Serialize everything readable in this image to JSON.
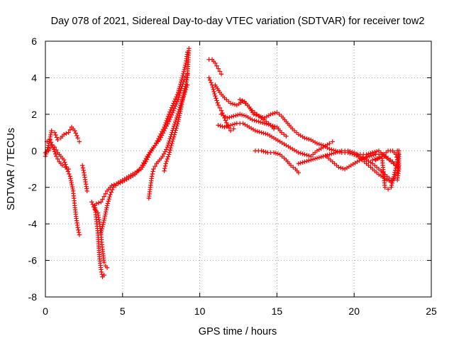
{
  "chart_data": {
    "type": "scatter",
    "title": "Day 078 of 2021, Sidereal Day-to-day VTEC variation (SDTVAR) for receiver tow2",
    "xlabel": "GPS time / hours",
    "ylabel": "SDTVAR / TECUs",
    "xlim": [
      0,
      25
    ],
    "ylim": [
      -8,
      6
    ],
    "xticks": [
      0,
      5,
      10,
      15,
      20,
      25
    ],
    "yticks": [
      -8,
      -6,
      -4,
      -2,
      0,
      2,
      4,
      6
    ],
    "xtick_labels": [
      "0",
      "5",
      "10",
      "15",
      "20",
      "25"
    ],
    "ytick_labels": [
      "-8",
      "-6",
      "-4",
      "-2",
      "0",
      "2",
      "4",
      "6"
    ],
    "grid": true,
    "marker": "plus",
    "color": "#ff0000",
    "series": [
      {
        "values": [
          [
            0.0,
            -0.3
          ],
          [
            0.2,
            0.3
          ],
          [
            0.4,
            1.1
          ],
          [
            0.6,
            1.0
          ],
          [
            0.8,
            0.6
          ],
          [
            1.0,
            0.7
          ],
          [
            1.2,
            0.9
          ],
          [
            1.5,
            1.0
          ],
          [
            1.7,
            1.3
          ],
          [
            1.9,
            1.1
          ],
          [
            2.1,
            0.7
          ],
          [
            2.2,
            0.5
          ]
        ]
      },
      {
        "values": [
          [
            0.0,
            -0.1
          ],
          [
            0.2,
            0.0
          ],
          [
            0.4,
            0.3
          ],
          [
            0.6,
            0.2
          ],
          [
            0.8,
            -0.1
          ],
          [
            1.0,
            -0.3
          ],
          [
            1.2,
            -0.5
          ],
          [
            1.4,
            -1.0
          ],
          [
            1.6,
            -1.4
          ],
          [
            1.8,
            -2.2
          ],
          [
            1.9,
            -3.0
          ],
          [
            2.0,
            -3.7
          ],
          [
            2.1,
            -4.2
          ],
          [
            2.2,
            -4.6
          ]
        ]
      },
      {
        "values": [
          [
            0.1,
            0.5
          ],
          [
            0.3,
            0.6
          ],
          [
            0.5,
            0.2
          ],
          [
            0.7,
            -0.3
          ],
          [
            0.9,
            -0.6
          ],
          [
            1.1,
            -0.8
          ],
          [
            1.3,
            -0.9
          ],
          [
            1.5,
            -1.0
          ]
        ]
      },
      {
        "values": [
          [
            2.4,
            -0.8
          ],
          [
            2.5,
            -1.2
          ],
          [
            2.6,
            -1.7
          ],
          [
            2.7,
            -2.2
          ]
        ]
      },
      {
        "values": [
          [
            3.0,
            -2.8
          ],
          [
            3.2,
            -3.2
          ],
          [
            3.4,
            -3.4
          ],
          [
            3.5,
            -3.9
          ],
          [
            3.6,
            -4.6
          ],
          [
            3.7,
            -5.4
          ],
          [
            3.8,
            -6.1
          ],
          [
            3.9,
            -6.3
          ],
          [
            4.0,
            -6.4
          ]
        ]
      },
      {
        "values": [
          [
            3.2,
            -3.0
          ],
          [
            3.4,
            -4.5
          ],
          [
            3.5,
            -5.8
          ],
          [
            3.6,
            -6.5
          ],
          [
            3.7,
            -6.9
          ],
          [
            3.8,
            -6.8
          ]
        ]
      },
      {
        "values": [
          [
            3.3,
            -2.9
          ],
          [
            3.6,
            -2.8
          ],
          [
            3.8,
            -2.5
          ],
          [
            4.0,
            -2.2
          ],
          [
            4.3,
            -1.9
          ],
          [
            4.6,
            -1.8
          ],
          [
            5.0,
            -1.6
          ],
          [
            5.4,
            -1.4
          ],
          [
            5.8,
            -1.2
          ],
          [
            6.2,
            -1.0
          ],
          [
            6.5,
            -0.6
          ],
          [
            6.8,
            -0.1
          ],
          [
            7.1,
            0.3
          ],
          [
            7.4,
            0.8
          ],
          [
            7.7,
            1.3
          ],
          [
            8.0,
            2.0
          ],
          [
            8.3,
            2.6
          ],
          [
            8.6,
            3.2
          ],
          [
            8.9,
            4.1
          ],
          [
            9.1,
            4.8
          ],
          [
            9.2,
            5.4
          ]
        ]
      },
      {
        "values": [
          [
            3.6,
            -4.5
          ],
          [
            3.8,
            -3.8
          ],
          [
            4.0,
            -3.0
          ],
          [
            4.2,
            -2.4
          ],
          [
            4.4,
            -2.0
          ],
          [
            4.7,
            -1.8
          ],
          [
            5.0,
            -1.7
          ],
          [
            5.4,
            -1.5
          ],
          [
            5.8,
            -1.3
          ],
          [
            6.2,
            -0.9
          ],
          [
            6.6,
            -0.3
          ],
          [
            7.0,
            0.2
          ],
          [
            7.4,
            0.6
          ],
          [
            7.7,
            1.1
          ],
          [
            8.0,
            1.6
          ],
          [
            8.3,
            2.2
          ],
          [
            8.6,
            2.8
          ],
          [
            8.8,
            3.4
          ],
          [
            9.0,
            3.9
          ],
          [
            9.2,
            4.2
          ]
        ]
      },
      {
        "values": [
          [
            6.7,
            -2.6
          ],
          [
            6.8,
            -2.0
          ],
          [
            6.9,
            -1.4
          ],
          [
            7.0,
            -1.0
          ],
          [
            7.2,
            -0.7
          ],
          [
            7.4,
            -0.5
          ],
          [
            7.6,
            -0.3
          ],
          [
            7.9,
            0.2
          ],
          [
            8.2,
            1.0
          ],
          [
            8.5,
            1.8
          ],
          [
            8.8,
            2.6
          ],
          [
            9.0,
            3.1
          ],
          [
            9.2,
            3.6
          ]
        ]
      },
      {
        "values": [
          [
            7.7,
            -1.1
          ],
          [
            7.8,
            -0.7
          ],
          [
            8.0,
            -0.2
          ],
          [
            8.2,
            0.4
          ],
          [
            8.4,
            1.0
          ],
          [
            8.6,
            1.6
          ],
          [
            8.8,
            2.4
          ],
          [
            9.0,
            3.3
          ],
          [
            9.2,
            4.0
          ],
          [
            9.3,
            5.6
          ]
        ]
      },
      {
        "values": [
          [
            10.6,
            5.0
          ],
          [
            10.8,
            5.0
          ],
          [
            11.0,
            4.8
          ],
          [
            11.2,
            4.5
          ],
          [
            11.4,
            4.2
          ]
        ]
      },
      {
        "values": [
          [
            10.6,
            4.0
          ],
          [
            10.8,
            3.6
          ],
          [
            11.0,
            3.0
          ],
          [
            11.2,
            2.5
          ],
          [
            11.4,
            2.2
          ],
          [
            11.6,
            1.8
          ],
          [
            11.8,
            1.4
          ],
          [
            12.0,
            1.1
          ],
          [
            12.2,
            1.2
          ]
        ]
      },
      {
        "values": [
          [
            11.0,
            3.6
          ],
          [
            11.3,
            3.2
          ],
          [
            11.6,
            2.9
          ],
          [
            12.0,
            2.6
          ],
          [
            12.4,
            2.5
          ],
          [
            12.8,
            2.7
          ],
          [
            13.1,
            2.5
          ],
          [
            13.4,
            2.2
          ],
          [
            13.7,
            2.0
          ],
          [
            14.0,
            1.8
          ],
          [
            14.3,
            1.6
          ],
          [
            14.6,
            1.4
          ],
          [
            14.8,
            1.2
          ]
        ]
      },
      {
        "values": [
          [
            11.4,
            2.0
          ],
          [
            11.8,
            1.8
          ],
          [
            12.2,
            1.9
          ],
          [
            12.6,
            2.0
          ],
          [
            13.0,
            1.9
          ],
          [
            13.4,
            1.7
          ],
          [
            13.8,
            1.6
          ],
          [
            14.2,
            1.5
          ],
          [
            14.6,
            1.4
          ],
          [
            15.0,
            1.3
          ],
          [
            15.3,
            1.0
          ],
          [
            15.6,
            0.8
          ]
        ]
      },
      {
        "values": [
          [
            11.2,
            1.4
          ],
          [
            11.6,
            1.3
          ],
          [
            12.0,
            1.4
          ],
          [
            12.4,
            1.5
          ],
          [
            12.8,
            1.5
          ],
          [
            13.2,
            1.3
          ],
          [
            13.6,
            1.1
          ],
          [
            14.0,
            1.0
          ],
          [
            14.4,
            0.9
          ],
          [
            14.8,
            0.7
          ],
          [
            15.2,
            0.5
          ],
          [
            15.6,
            0.3
          ],
          [
            16.0,
            0.1
          ],
          [
            16.4,
            -0.1
          ],
          [
            16.8,
            -0.2
          ],
          [
            17.2,
            -0.3
          ],
          [
            17.6,
            0.0
          ],
          [
            18.0,
            0.2
          ],
          [
            18.4,
            0.4
          ],
          [
            18.6,
            0.5
          ]
        ]
      },
      {
        "values": [
          [
            12.6,
            2.8
          ],
          [
            12.9,
            2.7
          ],
          [
            13.2,
            2.4
          ],
          [
            13.5,
            2.0
          ],
          [
            13.8,
            1.9
          ],
          [
            14.2,
            1.8
          ],
          [
            14.6,
            2.0
          ],
          [
            15.0,
            2.1
          ],
          [
            15.3,
            1.9
          ],
          [
            15.6,
            1.6
          ],
          [
            16.0,
            1.2
          ],
          [
            16.4,
            0.9
          ],
          [
            16.8,
            0.7
          ],
          [
            17.2,
            0.6
          ],
          [
            17.6,
            0.4
          ],
          [
            18.0,
            0.3
          ],
          [
            18.4,
            0.1
          ],
          [
            18.8,
            0.0
          ],
          [
            19.2,
            -0.1
          ],
          [
            19.6,
            -0.1
          ],
          [
            20.0,
            -0.2
          ],
          [
            20.4,
            -0.2
          ],
          [
            20.8,
            -0.2
          ],
          [
            21.2,
            -0.1
          ],
          [
            21.6,
            0.0
          ],
          [
            22.0,
            -0.3
          ],
          [
            22.4,
            -0.6
          ],
          [
            22.7,
            -0.8
          ]
        ]
      },
      {
        "values": [
          [
            13.6,
            0.0
          ],
          [
            14.0,
            0.0
          ],
          [
            14.4,
            -0.1
          ],
          [
            14.8,
            -0.1
          ],
          [
            15.2,
            -0.2
          ],
          [
            15.6,
            -0.5
          ],
          [
            15.9,
            -0.8
          ],
          [
            16.2,
            -1.0
          ],
          [
            16.4,
            -1.2
          ]
        ]
      },
      {
        "values": [
          [
            16.4,
            -0.7
          ],
          [
            16.8,
            -0.6
          ],
          [
            17.2,
            -0.5
          ],
          [
            17.6,
            -0.4
          ],
          [
            18.0,
            -0.3
          ],
          [
            18.4,
            -0.2
          ],
          [
            18.8,
            -0.1
          ],
          [
            19.2,
            0.0
          ],
          [
            19.6,
            0.0
          ],
          [
            20.0,
            -0.1
          ],
          [
            20.4,
            -0.3
          ],
          [
            20.8,
            -0.5
          ],
          [
            21.2,
            -0.7
          ],
          [
            21.6,
            -1.0
          ],
          [
            22.0,
            -1.3
          ],
          [
            22.4,
            -1.6
          ],
          [
            22.6,
            -1.5
          ]
        ]
      },
      {
        "values": [
          [
            18.2,
            -0.3
          ],
          [
            18.6,
            -0.6
          ],
          [
            19.0,
            -0.9
          ],
          [
            19.4,
            -1.0
          ],
          [
            19.8,
            -0.8
          ],
          [
            20.2,
            -0.6
          ],
          [
            20.6,
            -0.4
          ],
          [
            21.0,
            -0.3
          ],
          [
            21.4,
            -0.2
          ],
          [
            21.8,
            -0.2
          ],
          [
            22.2,
            -0.4
          ],
          [
            22.5,
            -0.6
          ],
          [
            22.8,
            -0.9
          ]
        ]
      },
      {
        "values": [
          [
            20.0,
            -0.2
          ],
          [
            20.4,
            -0.4
          ],
          [
            20.8,
            -0.7
          ],
          [
            21.2,
            -1.0
          ],
          [
            21.6,
            -1.3
          ],
          [
            22.0,
            -1.5
          ],
          [
            22.4,
            -1.7
          ],
          [
            22.6,
            -1.5
          ],
          [
            22.8,
            -1.2
          ],
          [
            22.9,
            -0.8
          ],
          [
            22.9,
            -0.2
          ],
          [
            22.8,
            0.0
          ]
        ]
      },
      {
        "values": [
          [
            21.2,
            -0.5
          ],
          [
            21.6,
            -0.4
          ],
          [
            21.8,
            -0.3
          ],
          [
            22.0,
            -2.0
          ],
          [
            22.2,
            -2.1
          ],
          [
            22.4,
            -2.0
          ],
          [
            22.6,
            -1.3
          ],
          [
            22.8,
            -0.6
          ],
          [
            22.9,
            0.0
          ]
        ]
      },
      {
        "values": [
          [
            21.4,
            -0.5
          ],
          [
            21.8,
            -0.3
          ],
          [
            22.2,
            0.0
          ],
          [
            22.5,
            0.0
          ],
          [
            22.7,
            -0.2
          ],
          [
            22.8,
            -0.5
          ],
          [
            22.9,
            -1.0
          ],
          [
            22.8,
            -1.6
          ]
        ]
      }
    ]
  }
}
